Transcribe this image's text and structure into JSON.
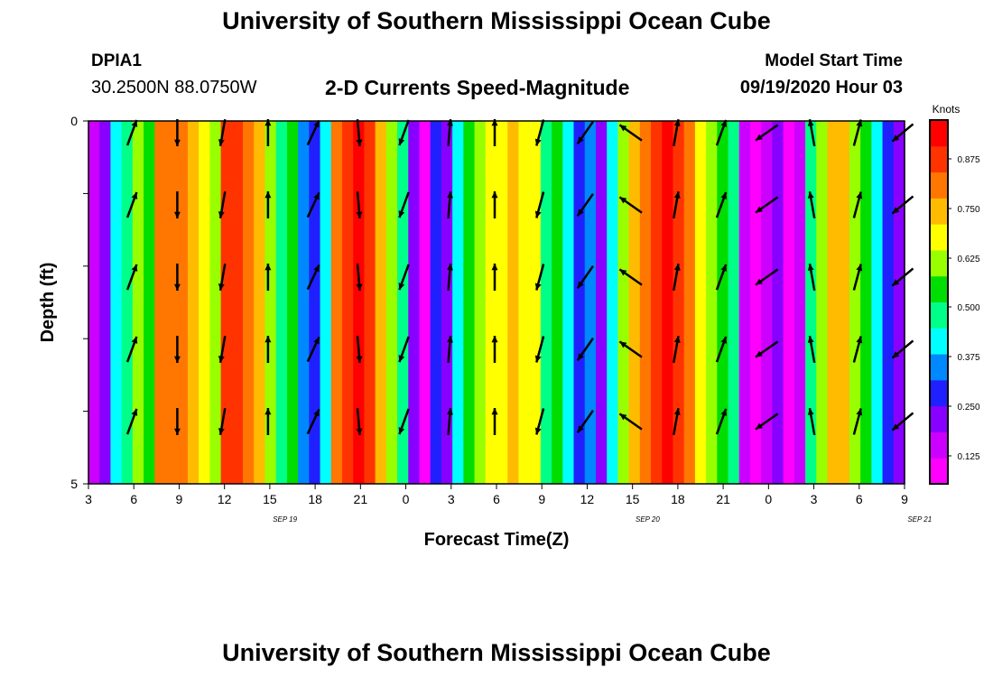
{
  "header": {
    "title": "University of Southern Mississippi Ocean Cube",
    "station_id": "DPIA1",
    "station_coords": "30.2500N 88.0750W",
    "chart_title": "2-D Currents Speed-Magnitude",
    "model_label": "Model Start Time",
    "model_time": "09/19/2020 Hour 03"
  },
  "footer": {
    "title": "University of Southern Mississippi Ocean Cube"
  },
  "chart_data": {
    "type": "heatmap",
    "title": "2-D Currents Speed-Magnitude",
    "xlabel": "Forecast Time(Z)",
    "ylabel": "Depth (ft)",
    "x_tick_labels": [
      "3",
      "6",
      "9",
      "12",
      "15",
      "18",
      "21",
      "0",
      "3",
      "6",
      "9",
      "12",
      "15",
      "18",
      "21",
      "0",
      "3",
      "6",
      "9"
    ],
    "date_labels": [
      {
        "label": "SEP 19",
        "at_hour": 13
      },
      {
        "label": "SEP 20",
        "at_hour": 37
      },
      {
        "label": "SEP 21",
        "at_hour": 55
      }
    ],
    "x_start": "09/19/2020 03Z",
    "x_range_hours": [
      0,
      54
    ],
    "y_tick_labels": [
      "0",
      "5"
    ],
    "ylim": [
      0,
      5
    ],
    "colorbar": {
      "title": "Knots",
      "tick_labels": [
        "0.875",
        "0.750",
        "0.625",
        "0.500",
        "0.375",
        "0.250",
        "0.125"
      ],
      "colors": [
        "#ff00ff",
        "#cc00ff",
        "#8800ff",
        "#2020ff",
        "#0088ff",
        "#00ffff",
        "#00ff88",
        "#00dd00",
        "#99ff00",
        "#ffff00",
        "#ffbb00",
        "#ff7700",
        "#ff3300",
        "#ff0000"
      ]
    },
    "speed_levels_by_column": [
      1,
      2,
      5,
      6,
      8,
      7,
      11,
      11,
      11,
      10,
      9,
      8,
      12,
      12,
      11,
      10,
      8,
      6,
      7,
      4,
      3,
      5,
      11,
      12,
      13,
      12,
      10,
      8,
      6,
      2,
      0,
      3,
      2,
      5,
      7,
      8,
      9,
      9,
      10,
      9,
      9,
      6,
      7,
      5,
      3,
      4,
      2,
      5,
      8,
      10,
      11,
      12,
      13,
      12,
      11,
      9,
      8,
      7,
      6,
      1,
      0,
      1,
      2,
      0,
      1,
      6,
      8,
      10,
      10,
      8,
      7,
      5,
      3,
      2
    ],
    "arrow_columns": [
      {
        "hour": 3,
        "angle_deg": 20
      },
      {
        "hour": 6,
        "angle_deg": 180
      },
      {
        "hour": 9,
        "angle_deg": 190
      },
      {
        "hour": 12,
        "angle_deg": 0
      },
      {
        "hour": 15,
        "angle_deg": 25
      },
      {
        "hour": 18,
        "angle_deg": 175
      },
      {
        "hour": 21,
        "angle_deg": 200
      },
      {
        "hour": 24,
        "angle_deg": 5
      },
      {
        "hour": 27,
        "angle_deg": 0
      },
      {
        "hour": 30,
        "angle_deg": 195
      },
      {
        "hour": 33,
        "angle_deg": 215
      },
      {
        "hour": 36,
        "angle_deg": 305
      },
      {
        "hour": 39,
        "angle_deg": 10
      },
      {
        "hour": 42,
        "angle_deg": 20
      },
      {
        "hour": 45,
        "angle_deg": 235
      },
      {
        "hour": 48,
        "angle_deg": 350
      },
      {
        "hour": 51,
        "angle_deg": 15
      },
      {
        "hour": 54,
        "angle_deg": 230
      }
    ]
  }
}
